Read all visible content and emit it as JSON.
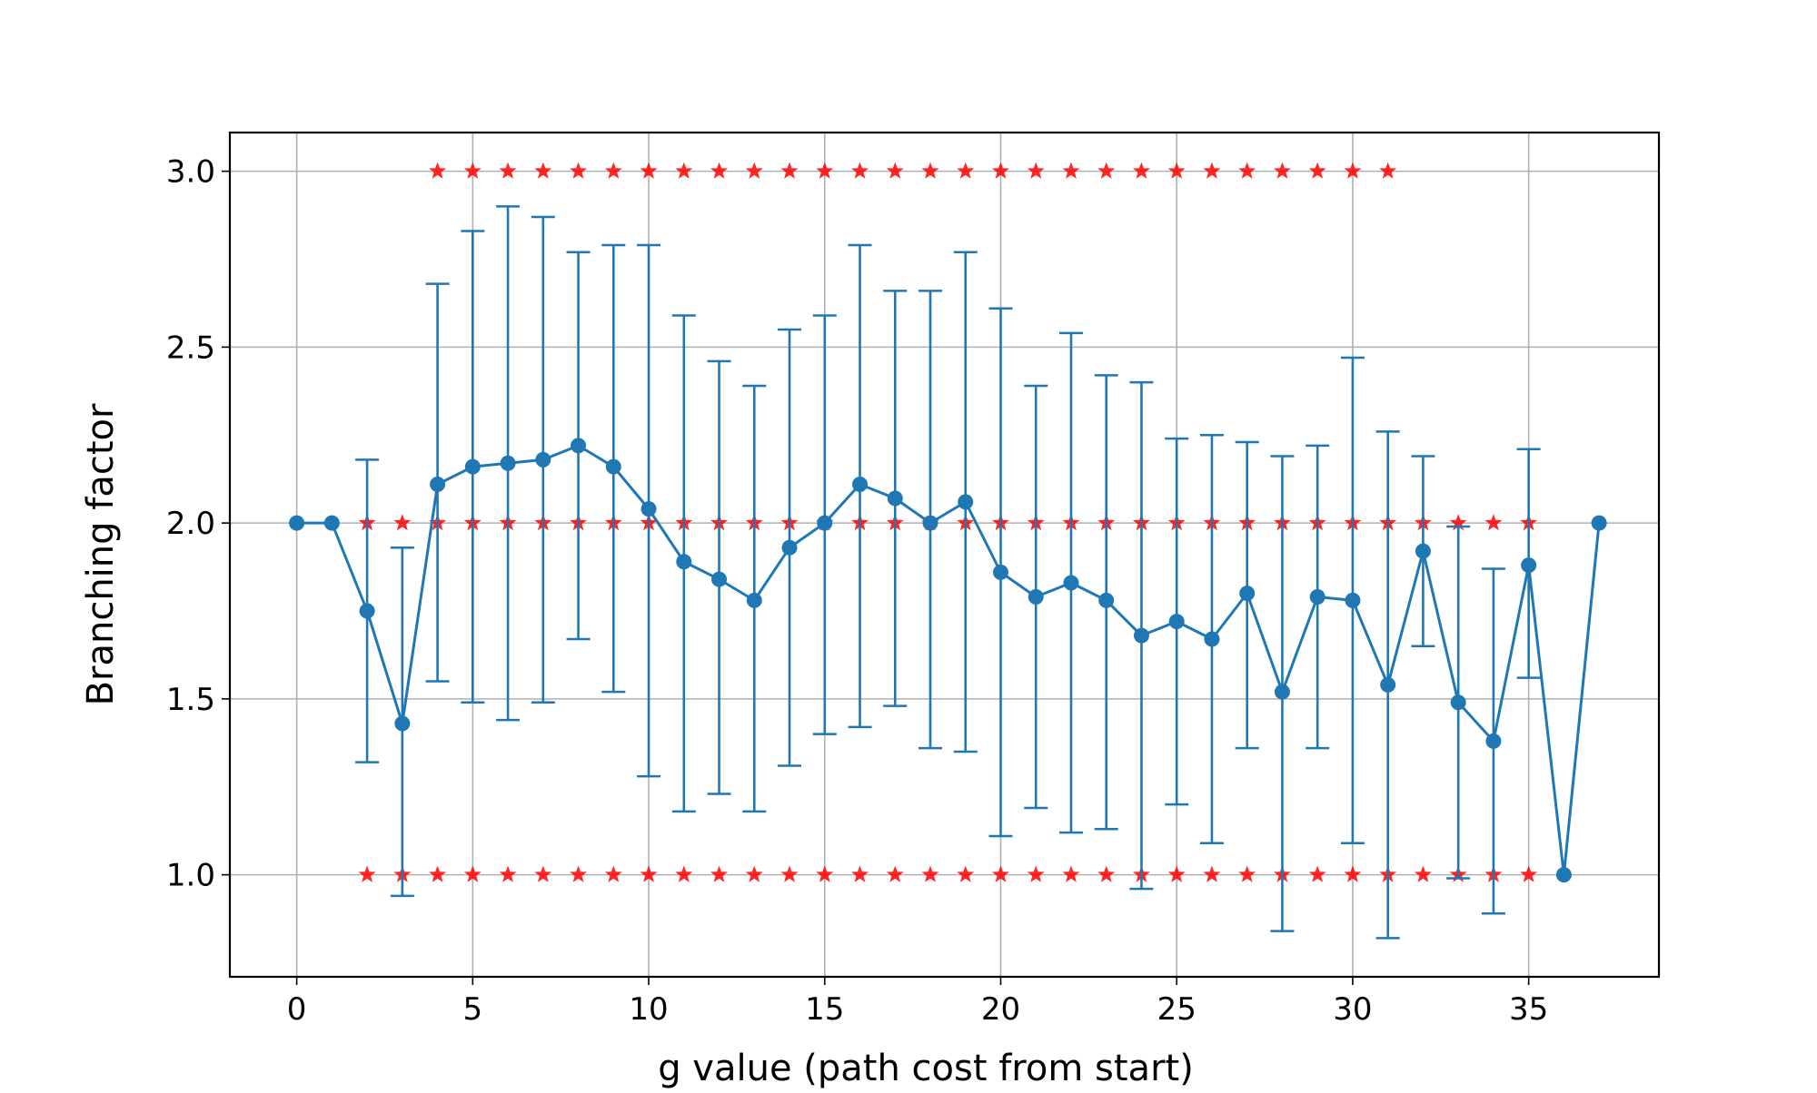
{
  "chart_data": {
    "type": "line",
    "title": "",
    "xlabel": "g value (path cost from start)",
    "ylabel": "Branching factor",
    "xlim": [
      -1.9,
      38.7
    ],
    "ylim": [
      0.71,
      3.11
    ],
    "xticks": [
      0,
      5,
      10,
      15,
      20,
      25,
      30,
      35
    ],
    "yticks": [
      1.0,
      1.5,
      2.0,
      2.5,
      3.0
    ],
    "xtick_labels": [
      "0",
      "5",
      "10",
      "15",
      "20",
      "25",
      "30",
      "35"
    ],
    "ytick_labels": [
      "1.0",
      "1.5",
      "2.0",
      "2.5",
      "3.0"
    ],
    "grid": true,
    "legend": "none",
    "colors": {
      "mean": "#1f77b4",
      "stars": "#ff0000"
    },
    "series": [
      {
        "kind": "mean_with_errorbars",
        "x": [
          0,
          1,
          2,
          3,
          4,
          5,
          6,
          7,
          8,
          9,
          10,
          11,
          12,
          13,
          14,
          15,
          16,
          17,
          18,
          19,
          20,
          21,
          22,
          23,
          24,
          25,
          26,
          27,
          28,
          29,
          30,
          31,
          32,
          33,
          34,
          35,
          36,
          37
        ],
        "y": [
          2.0,
          2.0,
          1.75,
          1.43,
          2.11,
          2.16,
          2.17,
          2.18,
          2.22,
          2.16,
          2.04,
          1.89,
          1.84,
          1.78,
          1.93,
          2.0,
          2.11,
          2.07,
          2.0,
          2.06,
          1.86,
          1.79,
          1.83,
          1.78,
          1.68,
          1.72,
          1.67,
          1.8,
          1.52,
          1.79,
          1.78,
          1.54,
          1.92,
          1.49,
          1.38,
          1.88,
          1.0,
          2.0
        ],
        "err_low": [
          null,
          null,
          1.32,
          0.94,
          1.55,
          1.49,
          1.44,
          1.49,
          1.67,
          1.52,
          1.28,
          1.18,
          1.23,
          1.18,
          1.31,
          1.4,
          1.42,
          1.48,
          1.36,
          1.35,
          1.11,
          1.19,
          1.12,
          1.13,
          0.96,
          1.2,
          1.09,
          1.36,
          0.84,
          1.36,
          1.09,
          0.82,
          1.65,
          0.99,
          0.89,
          1.56,
          null,
          null
        ],
        "err_high": [
          null,
          null,
          2.18,
          1.93,
          2.68,
          2.83,
          2.9,
          2.87,
          2.77,
          2.79,
          2.79,
          2.59,
          2.46,
          2.39,
          2.55,
          2.59,
          2.79,
          2.66,
          2.66,
          2.77,
          2.61,
          2.39,
          2.54,
          2.42,
          2.4,
          2.24,
          2.25,
          2.23,
          2.19,
          2.22,
          2.47,
          2.26,
          2.19,
          1.99,
          1.87,
          2.21,
          null,
          null
        ]
      },
      {
        "kind": "stars",
        "y": 3.0,
        "x": [
          4,
          5,
          6,
          7,
          8,
          9,
          10,
          11,
          12,
          13,
          14,
          15,
          16,
          17,
          18,
          19,
          20,
          21,
          22,
          23,
          24,
          25,
          26,
          27,
          28,
          29,
          30,
          31
        ]
      },
      {
        "kind": "stars",
        "y": 2.0,
        "x": [
          2,
          3,
          4,
          5,
          6,
          7,
          8,
          9,
          10,
          11,
          12,
          13,
          14,
          15,
          16,
          17,
          18,
          19,
          20,
          21,
          22,
          23,
          24,
          25,
          26,
          27,
          28,
          29,
          30,
          31,
          32,
          33,
          34,
          35
        ]
      },
      {
        "kind": "stars",
        "y": 1.0,
        "x": [
          2,
          3,
          4,
          5,
          6,
          7,
          8,
          9,
          10,
          11,
          12,
          13,
          14,
          15,
          16,
          17,
          18,
          19,
          20,
          21,
          22,
          23,
          24,
          25,
          26,
          27,
          28,
          29,
          30,
          31,
          32,
          33,
          34,
          35
        ]
      }
    ]
  }
}
